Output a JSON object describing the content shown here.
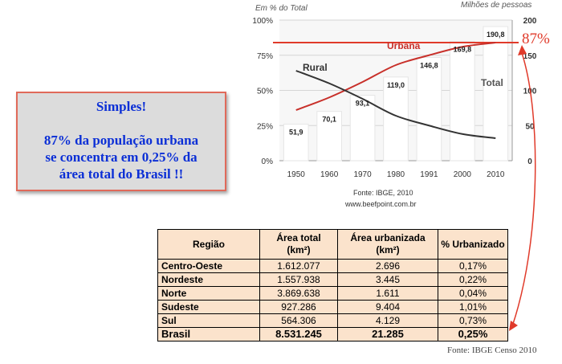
{
  "chart_data": {
    "type": "bar+line",
    "left_axis_title": "Em % do Total",
    "right_axis_title": "Milhões de pessoas",
    "x": [
      "1950",
      "1960",
      "1970",
      "1980",
      "1991",
      "2000",
      "2010"
    ],
    "left_ticks": [
      "0%",
      "25%",
      "50%",
      "75%",
      "100%"
    ],
    "right_ticks": [
      "0",
      "50",
      "100",
      "150",
      "200"
    ],
    "left_range": [
      0,
      100
    ],
    "right_range": [
      0,
      200
    ],
    "series": [
      {
        "name": "Total",
        "kind": "bar",
        "axis": "right",
        "values": [
          51.9,
          70.1,
          93.1,
          119.0,
          146.8,
          169.8,
          190.8
        ],
        "labels": [
          "51,9",
          "70,1",
          "93,1",
          "119,0",
          "146,8",
          "169,8",
          "190,8"
        ],
        "color": "#e8e8e8"
      },
      {
        "name": "Urbana",
        "kind": "line",
        "axis": "left",
        "values": [
          36,
          45,
          56,
          68,
          75,
          81,
          84
        ],
        "color": "#c8302a"
      },
      {
        "name": "Rural",
        "kind": "line",
        "axis": "left",
        "values": [
          64,
          55,
          44,
          32,
          25,
          19,
          16
        ],
        "color": "#333333"
      }
    ],
    "reference_line": {
      "value": 84,
      "axis": "left",
      "color": "#e03a2a"
    },
    "source": "Fonte: IBGE, 2010",
    "website": "www.beefpoint.com.br",
    "grid": true
  },
  "annotation": {
    "label": "87%",
    "color": "#e03a2a"
  },
  "callout": {
    "line1": "Simples!",
    "line2": "87% da população urbana",
    "line3": "se concentra em 0,25% da",
    "line4": "área total do Brasil !!",
    "text_color": "#0b2fd6",
    "border_color": "#e06a5a"
  },
  "table": {
    "headers": {
      "regiao": "Região",
      "area_total": "Área total",
      "area_total_unit": "(km²)",
      "area_urb": "Área urbanizada",
      "area_urb_unit": "(km²)",
      "pct": "% Urbanizado"
    },
    "rows": [
      {
        "name": "Centro-Oeste",
        "total": "1.612.077",
        "urb": "2.696",
        "pct": "0,17%"
      },
      {
        "name": "Nordeste",
        "total": "1.557.938",
        "urb": "3.445",
        "pct": "0,22%"
      },
      {
        "name": "Norte",
        "total": "3.869.638",
        "urb": "1.611",
        "pct": "0,04%"
      },
      {
        "name": "Sudeste",
        "total": "927.286",
        "urb": "9.404",
        "pct": "1,01%"
      },
      {
        "name": "Sul",
        "total": "564.306",
        "urb": "4.129",
        "pct": "0,73%"
      }
    ],
    "total": {
      "name": "Brasil",
      "total": "8.531.245",
      "urb": "21.285",
      "pct": "0,25%"
    },
    "bg_color": "#fbe3cc"
  },
  "footer": {
    "source": "Fonte: IBGE Censo 2010"
  }
}
